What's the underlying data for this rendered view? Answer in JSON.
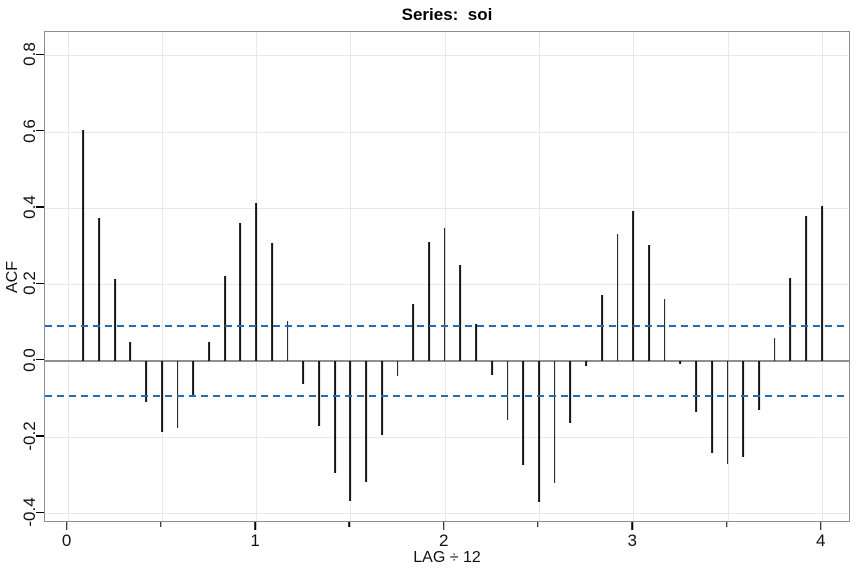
{
  "chart_data": {
    "type": "bar",
    "subtype": "acf-stem-plot",
    "title": "Series:  soi",
    "xlabel": "LAG ÷ 12",
    "ylabel": "ACF",
    "grid": true,
    "legend": false,
    "xlim": [
      -0.12,
      4.155
    ],
    "ylim": [
      -0.425,
      0.861
    ],
    "x_ticks_major": [
      0,
      1,
      2,
      3,
      4
    ],
    "x_tick_labels": [
      "0",
      "1",
      "2",
      "3",
      "4"
    ],
    "x_ticks_minor": [
      0.5,
      1.5,
      2.5,
      3.5
    ],
    "y_ticks": [
      0.8,
      0.6,
      0.4,
      0.2,
      0.0,
      -0.2,
      -0.4
    ],
    "y_tick_labels": [
      "0.8",
      "0.6",
      "0.4",
      "0.2",
      "0.0",
      "-0.2",
      "-0.4"
    ],
    "confidence_bands": {
      "upper": 0.092,
      "lower": -0.092,
      "style": "dashed"
    },
    "lag_step": 0.0833333,
    "n_lags": 48,
    "series": [
      {
        "name": "ACF of soi",
        "values": [
          0.604,
          0.374,
          0.214,
          0.05,
          -0.107,
          -0.187,
          -0.175,
          -0.095,
          0.049,
          0.222,
          0.36,
          0.412,
          0.309,
          0.104,
          -0.061,
          -0.17,
          -0.294,
          -0.367,
          -0.318,
          -0.195,
          -0.041,
          0.148,
          0.312,
          0.348,
          0.252,
          0.096,
          -0.037,
          -0.155,
          -0.274,
          -0.37,
          -0.319,
          -0.163,
          -0.013,
          0.173,
          0.332,
          0.392,
          0.302,
          0.161,
          -0.008,
          -0.135,
          -0.243,
          -0.271,
          -0.252,
          -0.128,
          0.059,
          0.216,
          0.378,
          0.405
        ]
      }
    ],
    "colors": {
      "stem": "#141414",
      "confidence_dash": "#1f6eb8",
      "grid": "#e8e8e8",
      "axis_box": "#8f8f8f",
      "zero_line": "#8f8f8f",
      "text": "#111111",
      "background": "#ffffff"
    }
  }
}
